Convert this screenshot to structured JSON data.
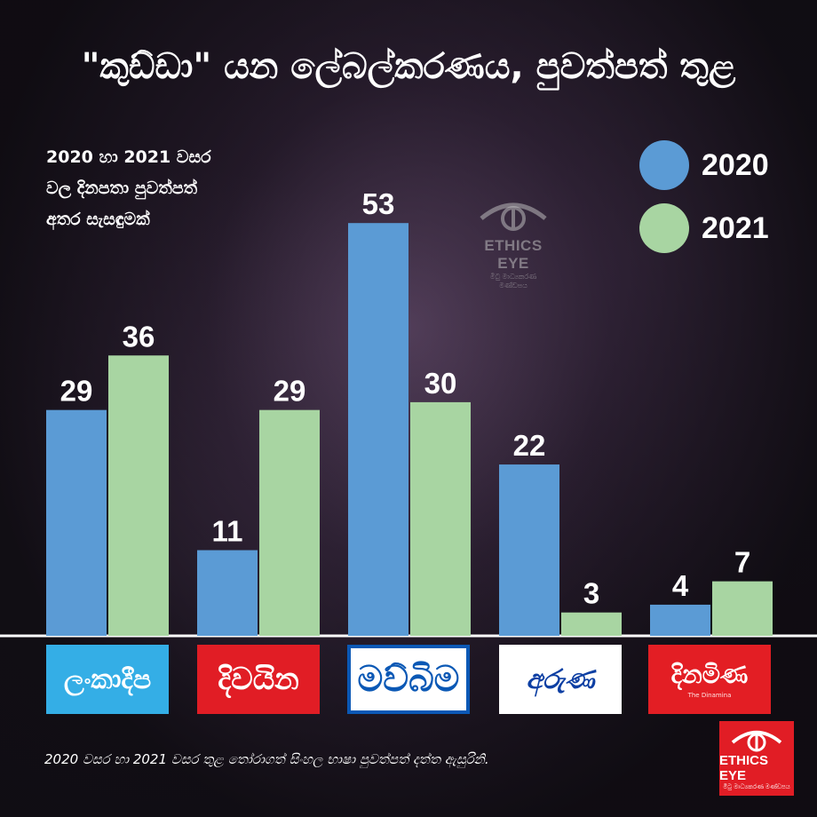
{
  "header": {
    "title": "\"කුඩ්ඩා\" යන ලේබල්කරණය, පුවත්පත් තුළ",
    "subtitle_lines": [
      "2020 හා 2021 වසර",
      "වල දිනපතා පුවත්පත්",
      "අතර සැසඳුමක්"
    ]
  },
  "legend": [
    {
      "label": "2020",
      "color": "#5b9bd5"
    },
    {
      "label": "2021",
      "color": "#a8d5a2"
    }
  ],
  "watermark": {
    "text": "ETHICS",
    "sub": "EYE",
    "tagline": "මිටු මාධ්‍යකරණ මණ්ඩපය"
  },
  "chart_data": {
    "type": "bar",
    "categories": [
      "ලංකාදීප",
      "දිවයින",
      "මව්බිම",
      "අරුණ",
      "දිනමිණ"
    ],
    "series": [
      {
        "name": "2020",
        "values": [
          29,
          11,
          53,
          22,
          4
        ],
        "color": "#5b9bd5"
      },
      {
        "name": "2021",
        "values": [
          36,
          29,
          30,
          3,
          7
        ],
        "color": "#a8d5a2"
      }
    ],
    "ylim": [
      0,
      60
    ],
    "grid": false,
    "legend_position": "top-right"
  },
  "logos": {
    "lankadeepa": "ලංකාදීප",
    "divaina": "දිවයින",
    "mawbima": "මව්බිම",
    "aruna": "අරුණ",
    "dinamina": "දිනමිණ",
    "dinamina_sub": "The Dinamina"
  },
  "footer": {
    "note": "2020 වසර හා 2021 වසර තුළ තෝරාගත් සිංහල භාෂා පුවත්පත් දත්ත ඇසුරිනි.",
    "badge_text": "ETHICS",
    "badge_sub": "EYE",
    "badge_tagline": "මිටු මාධ්‍යකරණ මණ්ඩපය"
  }
}
